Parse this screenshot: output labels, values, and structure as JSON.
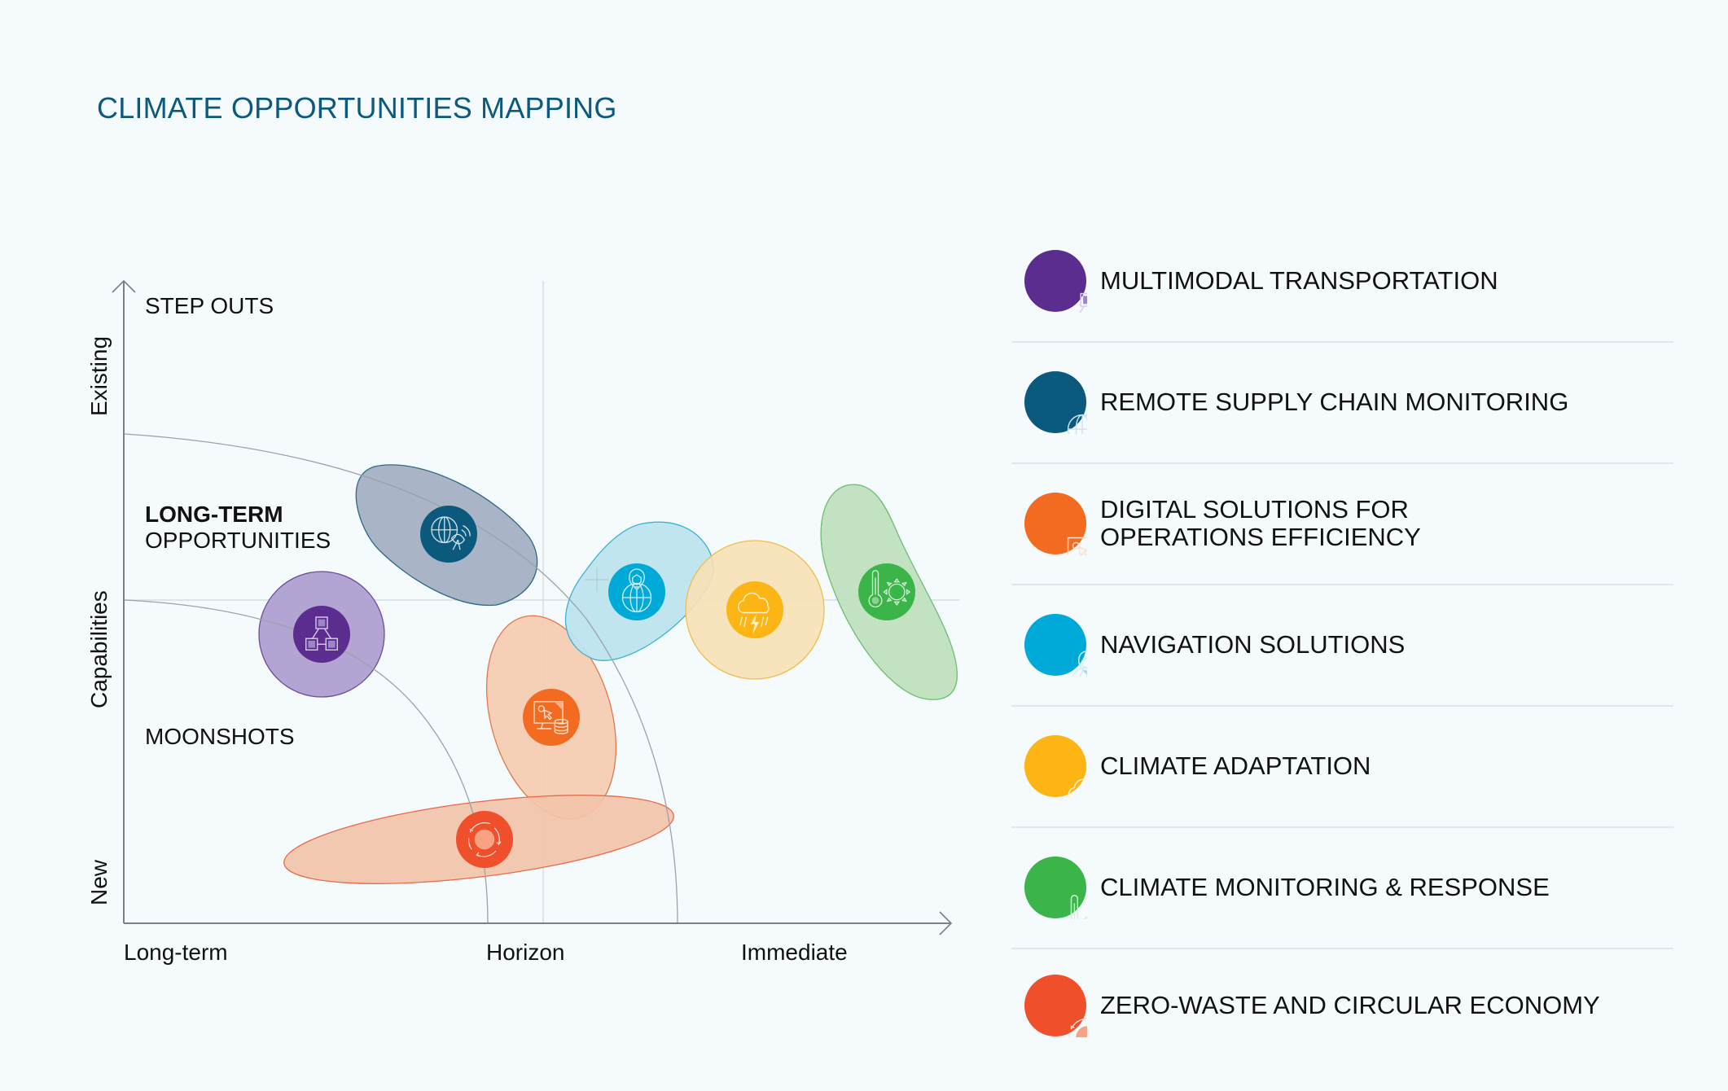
{
  "title": "CLIMATE OPPORTUNITIES MAPPING",
  "chart_data": {
    "type": "bubble-map",
    "title": "CLIMATE OPPORTUNITIES MAPPING",
    "xlabel": "Horizon",
    "ylabel": "Capabilities",
    "x_ticks": [
      "Long-term",
      "Horizon",
      "Immediate"
    ],
    "y_ticks": [
      "New",
      "Capabilities",
      "Existing"
    ],
    "zones": {
      "step_outs": "STEP OUTS",
      "long_term_bold": "LONG-TERM",
      "long_term_rest": "OPPORTUNITIES",
      "moonshots": "MOONSHOTS"
    },
    "items": [
      {
        "id": "multimodal",
        "name": "MULTIMODAL TRANSPORTATION",
        "color": "#5b2d8e",
        "fill": "#b3a5d3",
        "icon": "network-nodes-icon"
      },
      {
        "id": "remote",
        "name": "REMOTE SUPPLY CHAIN MONITORING",
        "color": "#0b5a7e",
        "fill": "#a9b4c6",
        "icon": "globe-satellite-icon"
      },
      {
        "id": "digital",
        "name": "DIGITAL SOLUTIONS FOR\nOPERATIONS EFFICIENCY",
        "color": "#f26b21",
        "fill": "#f4ccb0",
        "icon": "monitor-database-icon"
      },
      {
        "id": "navigation",
        "name": "NAVIGATION SOLUTIONS",
        "color": "#00aad8",
        "fill": "#bde4ee",
        "icon": "location-pin-globe-icon"
      },
      {
        "id": "adaptation",
        "name": "CLIMATE ADAPTATION",
        "color": "#fdb515",
        "fill": "#f6e1b6",
        "icon": "storm-cloud-icon"
      },
      {
        "id": "monitoring",
        "name": "CLIMATE MONITORING & RESPONSE",
        "color": "#3bb54a",
        "fill": "#c0e0bf",
        "icon": "thermometer-sun-icon"
      },
      {
        "id": "zerowaste",
        "name": "ZERO-WASTE AND CIRCULAR ECONOMY",
        "color": "#ef4f2a",
        "fill": "#f2c3aa",
        "icon": "circular-arrows-icon"
      }
    ]
  },
  "legend": [
    {
      "label": "MULTIMODAL TRANSPORTATION",
      "icon": "network-nodes-icon",
      "color": "#5b2d8e"
    },
    {
      "label": "REMOTE SUPPLY CHAIN MONITORING",
      "icon": "globe-satellite-icon",
      "color": "#0b5a7e"
    },
    {
      "label": "DIGITAL SOLUTIONS FOR\nOPERATIONS EFFICIENCY",
      "icon": "monitor-database-icon",
      "color": "#f26b21"
    },
    {
      "label": "NAVIGATION SOLUTIONS",
      "icon": "location-pin-globe-icon",
      "color": "#00aad8"
    },
    {
      "label": "CLIMATE ADAPTATION",
      "icon": "storm-cloud-icon",
      "color": "#fdb515"
    },
    {
      "label": "CLIMATE MONITORING & RESPONSE",
      "icon": "thermometer-sun-icon",
      "color": "#3bb54a"
    },
    {
      "label": "ZERO-WASTE AND CIRCULAR ECONOMY",
      "icon": "circular-arrows-icon",
      "color": "#ef4f2a"
    }
  ]
}
